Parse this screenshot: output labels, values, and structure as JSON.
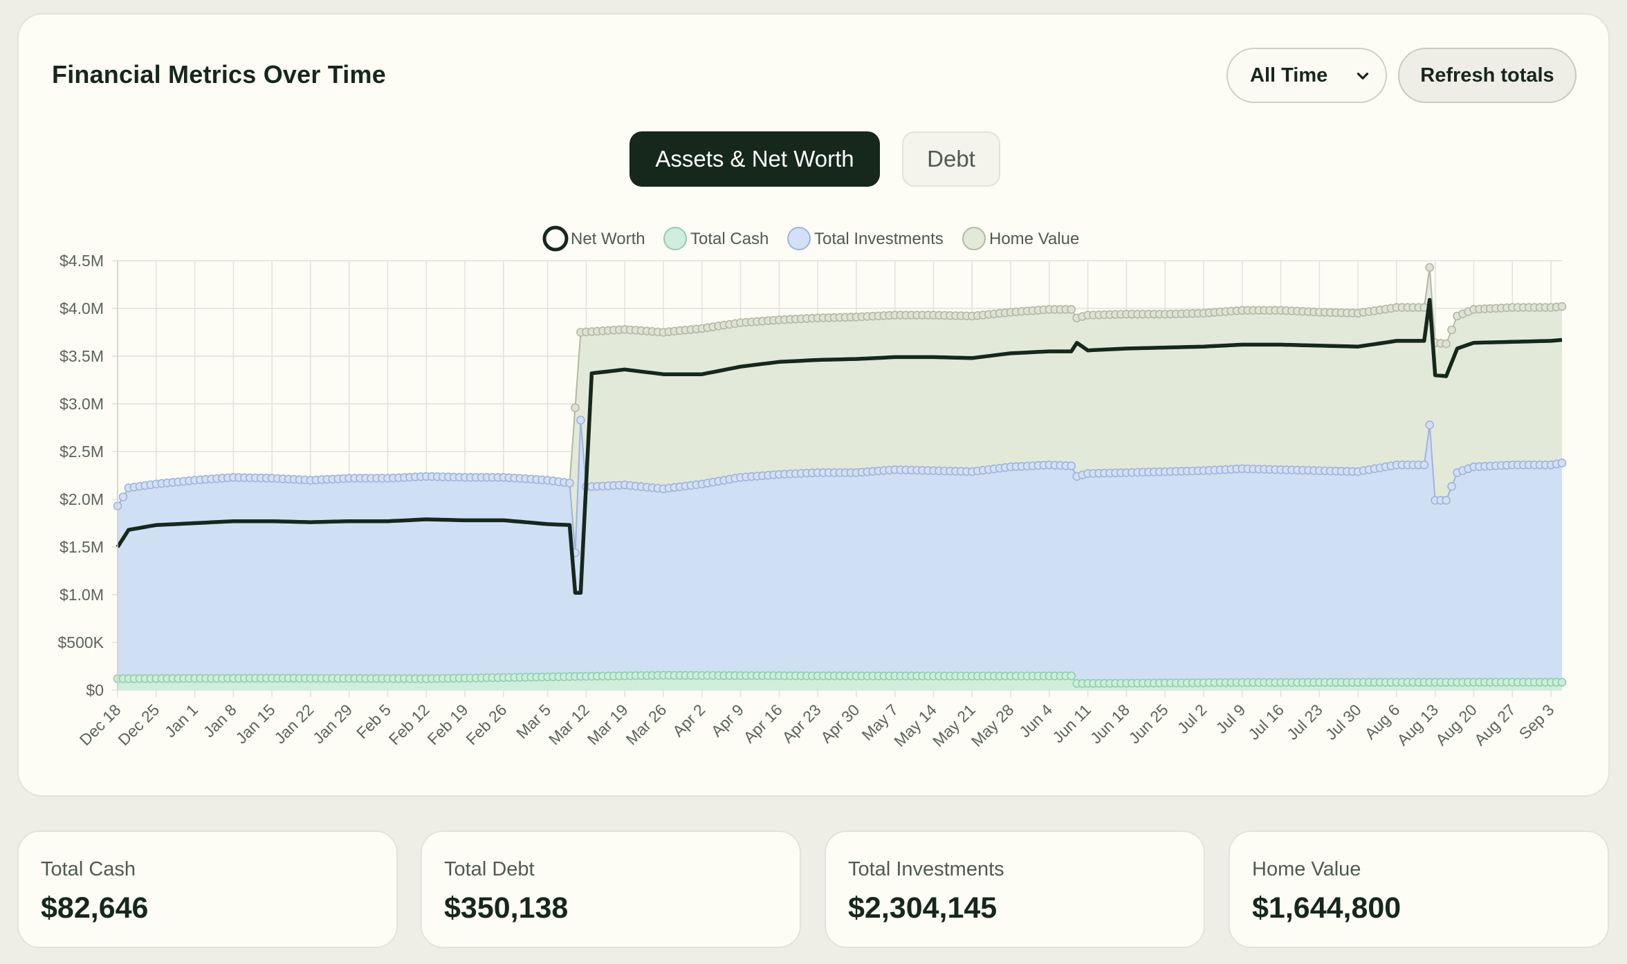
{
  "header": {
    "title": "Financial Metrics Over Time",
    "range_selected": "All Time",
    "refresh_label": "Refresh totals"
  },
  "tabs": [
    {
      "label": "Assets & Net Worth",
      "active": true
    },
    {
      "label": "Debt",
      "active": false
    }
  ],
  "stats": [
    {
      "label": "Total Cash",
      "value": "$82,646"
    },
    {
      "label": "Total Debt",
      "value": "$350,138"
    },
    {
      "label": "Total Investments",
      "value": "$2,304,145"
    },
    {
      "label": "Home Value",
      "value": "$1,644,800"
    }
  ],
  "colors": {
    "net_worth": "#16271c",
    "cash_fill": "#cfeedd",
    "cash_stroke": "#8fcfac",
    "investments_fill": "#cfdff4",
    "investments_stroke": "#9fb3dc",
    "home_fill": "#e3e9d8",
    "home_stroke": "#b3b8a4"
  },
  "chart_data": {
    "type": "area",
    "stacked": false,
    "ylim": [
      0,
      4500000
    ],
    "yticks": [
      0,
      500000,
      1000000,
      1500000,
      2000000,
      2500000,
      3000000,
      3500000,
      4000000,
      4500000
    ],
    "ytick_labels": [
      "$0",
      "$500K",
      "$1.0M",
      "$1.5M",
      "$2.0M",
      "$2.5M",
      "$3.0M",
      "$3.5M",
      "$4.0M",
      "$4.5M"
    ],
    "xrange": [
      "2023-12-18",
      "2024-09-05"
    ],
    "xtick_labels": [
      "Dec 18",
      "Dec 25",
      "Jan 1",
      "Jan 8",
      "Jan 15",
      "Jan 22",
      "Jan 29",
      "Feb 5",
      "Feb 12",
      "Feb 19",
      "Feb 26",
      "Mar 5",
      "Mar 12",
      "Mar 19",
      "Mar 26",
      "Apr 2",
      "Apr 9",
      "Apr 16",
      "Apr 23",
      "Apr 30",
      "May 7",
      "May 14",
      "May 21",
      "May 28",
      "Jun 4",
      "Jun 11",
      "Jun 18",
      "Jun 25",
      "Jul 2",
      "Jul 9",
      "Jul 16",
      "Jul 23",
      "Jul 30",
      "Aug 6",
      "Aug 13",
      "Aug 20",
      "Aug 27",
      "Sep 3"
    ],
    "legend": [
      "Net Worth",
      "Total Cash",
      "Total Investments",
      "Home Value"
    ],
    "legend_position": "top-center",
    "grid": true,
    "series": [
      {
        "name": "Net Worth",
        "points": [
          [
            "Dec 18",
            1500000
          ],
          [
            "Dec 20",
            1680000
          ],
          [
            "Dec 25",
            1730000
          ],
          [
            "Jan 1",
            1750000
          ],
          [
            "Jan 8",
            1770000
          ],
          [
            "Jan 15",
            1770000
          ],
          [
            "Jan 22",
            1760000
          ],
          [
            "Jan 29",
            1770000
          ],
          [
            "Feb 5",
            1770000
          ],
          [
            "Feb 12",
            1790000
          ],
          [
            "Feb 19",
            1780000
          ],
          [
            "Feb 26",
            1780000
          ],
          [
            "Mar 5",
            1740000
          ],
          [
            "Mar 9",
            1730000
          ],
          [
            "Mar 10",
            1020000
          ],
          [
            "Mar 11",
            1020000
          ],
          [
            "Mar 13",
            3320000
          ],
          [
            "Mar 19",
            3360000
          ],
          [
            "Mar 26",
            3310000
          ],
          [
            "Apr 2",
            3310000
          ],
          [
            "Apr 9",
            3390000
          ],
          [
            "Apr 16",
            3440000
          ],
          [
            "Apr 23",
            3460000
          ],
          [
            "Apr 30",
            3470000
          ],
          [
            "May 7",
            3490000
          ],
          [
            "May 14",
            3490000
          ],
          [
            "May 21",
            3480000
          ],
          [
            "May 28",
            3530000
          ],
          [
            "Jun 4",
            3550000
          ],
          [
            "Jun 8",
            3550000
          ],
          [
            "Jun 9",
            3640000
          ],
          [
            "Jun 11",
            3560000
          ],
          [
            "Jun 18",
            3580000
          ],
          [
            "Jun 25",
            3590000
          ],
          [
            "Jul 2",
            3600000
          ],
          [
            "Jul 9",
            3620000
          ],
          [
            "Jul 16",
            3620000
          ],
          [
            "Jul 23",
            3610000
          ],
          [
            "Jul 30",
            3600000
          ],
          [
            "Aug 6",
            3660000
          ],
          [
            "Aug 11",
            3660000
          ],
          [
            "Aug 12",
            4090000
          ],
          [
            "Aug 13",
            3300000
          ],
          [
            "Aug 15",
            3290000
          ],
          [
            "Aug 17",
            3580000
          ],
          [
            "Aug 20",
            3640000
          ],
          [
            "Aug 27",
            3650000
          ],
          [
            "Sep 3",
            3660000
          ],
          [
            "Sep 5",
            3670000
          ]
        ]
      },
      {
        "name": "Total Cash",
        "points": [
          [
            "Dec 18",
            120000
          ],
          [
            "Jan 15",
            125000
          ],
          [
            "Feb 12",
            120000
          ],
          [
            "Mar 12",
            145000
          ],
          [
            "Mar 26",
            155000
          ],
          [
            "Apr 23",
            150000
          ],
          [
            "May 28",
            148000
          ],
          [
            "Jun 8",
            150000
          ],
          [
            "Jun 9",
            70000
          ],
          [
            "Jul 9",
            80000
          ],
          [
            "Aug 6",
            82000
          ],
          [
            "Sep 5",
            82646
          ]
        ]
      },
      {
        "name": "Total Investments",
        "points": [
          [
            "Dec 18",
            1930000
          ],
          [
            "Dec 20",
            2120000
          ],
          [
            "Dec 25",
            2160000
          ],
          [
            "Jan 1",
            2200000
          ],
          [
            "Jan 8",
            2230000
          ],
          [
            "Jan 15",
            2220000
          ],
          [
            "Jan 22",
            2200000
          ],
          [
            "Jan 29",
            2220000
          ],
          [
            "Feb 5",
            2220000
          ],
          [
            "Feb 12",
            2240000
          ],
          [
            "Feb 19",
            2230000
          ],
          [
            "Feb 26",
            2230000
          ],
          [
            "Mar 5",
            2200000
          ],
          [
            "Mar 9",
            2170000
          ],
          [
            "Mar 10",
            1440000
          ],
          [
            "Mar 11",
            2830000
          ],
          [
            "Mar 12",
            2130000
          ],
          [
            "Mar 19",
            2150000
          ],
          [
            "Mar 26",
            2110000
          ],
          [
            "Apr 2",
            2160000
          ],
          [
            "Apr 9",
            2230000
          ],
          [
            "Apr 16",
            2260000
          ],
          [
            "Apr 23",
            2280000
          ],
          [
            "Apr 30",
            2280000
          ],
          [
            "May 7",
            2310000
          ],
          [
            "May 14",
            2300000
          ],
          [
            "May 21",
            2290000
          ],
          [
            "May 28",
            2340000
          ],
          [
            "Jun 4",
            2360000
          ],
          [
            "Jun 8",
            2350000
          ],
          [
            "Jun 9",
            2240000
          ],
          [
            "Jun 11",
            2270000
          ],
          [
            "Jun 18",
            2280000
          ],
          [
            "Jun 25",
            2290000
          ],
          [
            "Jul 2",
            2300000
          ],
          [
            "Jul 9",
            2320000
          ],
          [
            "Jul 16",
            2310000
          ],
          [
            "Jul 23",
            2300000
          ],
          [
            "Jul 30",
            2290000
          ],
          [
            "Aug 6",
            2360000
          ],
          [
            "Aug 11",
            2360000
          ],
          [
            "Aug 12",
            2780000
          ],
          [
            "Aug 13",
            1990000
          ],
          [
            "Aug 15",
            1990000
          ],
          [
            "Aug 17",
            2280000
          ],
          [
            "Aug 20",
            2340000
          ],
          [
            "Aug 27",
            2360000
          ],
          [
            "Sep 3",
            2360000
          ],
          [
            "Sep 5",
            2380000
          ]
        ]
      },
      {
        "name": "Home Value",
        "points": [
          [
            "Dec 18",
            1930000
          ],
          [
            "Mar 9",
            2170000
          ],
          [
            "Mar 11",
            3750000
          ],
          [
            "Mar 19",
            3780000
          ],
          [
            "Mar 26",
            3750000
          ],
          [
            "Apr 2",
            3790000
          ],
          [
            "Apr 9",
            3850000
          ],
          [
            "Apr 16",
            3880000
          ],
          [
            "Apr 23",
            3900000
          ],
          [
            "Apr 30",
            3910000
          ],
          [
            "May 7",
            3930000
          ],
          [
            "May 14",
            3930000
          ],
          [
            "May 21",
            3920000
          ],
          [
            "May 28",
            3960000
          ],
          [
            "Jun 4",
            3990000
          ],
          [
            "Jun 8",
            3990000
          ],
          [
            "Jun 9",
            3900000
          ],
          [
            "Jun 11",
            3930000
          ],
          [
            "Jun 18",
            3940000
          ],
          [
            "Jun 25",
            3940000
          ],
          [
            "Jul 2",
            3950000
          ],
          [
            "Jul 9",
            3980000
          ],
          [
            "Jul 16",
            3980000
          ],
          [
            "Jul 23",
            3960000
          ],
          [
            "Jul 30",
            3950000
          ],
          [
            "Aug 6",
            4010000
          ],
          [
            "Aug 11",
            4010000
          ],
          [
            "Aug 12",
            4430000
          ],
          [
            "Aug 13",
            3640000
          ],
          [
            "Aug 15",
            3630000
          ],
          [
            "Aug 17",
            3920000
          ],
          [
            "Aug 20",
            3990000
          ],
          [
            "Aug 27",
            4010000
          ],
          [
            "Sep 3",
            4010000
          ],
          [
            "Sep 5",
            4020000
          ]
        ]
      }
    ]
  }
}
